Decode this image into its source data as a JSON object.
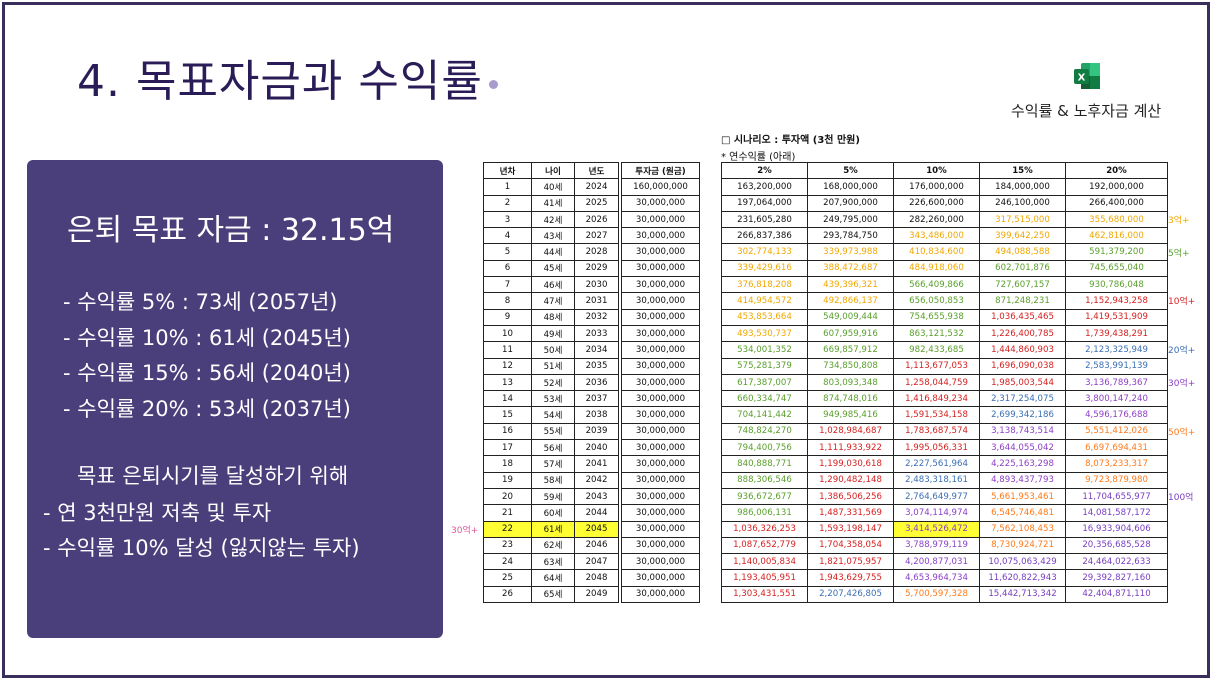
{
  "title": "4. 목표자금과 수익률",
  "excel_label": "수익률 & 노후자금 계산",
  "panel": {
    "goal": "은퇴 목표 자금 : 32.15억",
    "rates": [
      "- 수익률 5% : 73세 (2057년)",
      "- 수익률 10% : 61세 (2045년)",
      "- 수익률 15% : 56세 (2040년)",
      "- 수익률 20% : 53세 (2037년)"
    ],
    "aim_title": "목표 은퇴시기를 달성하기 위해",
    "aim_list": [
      "- 연 3천만원 저축 및 투자",
      "- 수익률 10% 달성 (잃지않는 투자)"
    ]
  },
  "scenario": {
    "title": "□ 시나리오 : 투자액 (3천 만원)",
    "subtitle": "* 연수익률 (아래)"
  },
  "table_headers": {
    "year_no": "년차",
    "age": "나이",
    "year": "년도",
    "invest": "투자금 (원금)",
    "rates": [
      "2%",
      "5%",
      "10%",
      "15%",
      "20%"
    ]
  },
  "rows": [
    {
      "n": "1",
      "age": "40세",
      "year": "2024",
      "invest": "160,000,000",
      "v": [
        "163,200,000",
        "168,000,000",
        "176,000,000",
        "184,000,000",
        "192,000,000"
      ]
    },
    {
      "n": "2",
      "age": "41세",
      "year": "2025",
      "invest": "30,000,000",
      "v": [
        "197,064,000",
        "207,900,000",
        "226,600,000",
        "246,100,000",
        "266,400,000"
      ]
    },
    {
      "n": "3",
      "age": "42세",
      "year": "2026",
      "invest": "30,000,000",
      "v": [
        "231,605,280",
        "249,795,000",
        "282,260,000",
        "317,515,000",
        "355,680,000"
      ]
    },
    {
      "n": "4",
      "age": "43세",
      "year": "2027",
      "invest": "30,000,000",
      "v": [
        "266,837,386",
        "293,784,750",
        "343,486,000",
        "399,642,250",
        "462,816,000"
      ]
    },
    {
      "n": "5",
      "age": "44세",
      "year": "2028",
      "invest": "30,000,000",
      "v": [
        "302,774,133",
        "339,973,988",
        "410,834,600",
        "494,088,588",
        "591,379,200"
      ]
    },
    {
      "n": "6",
      "age": "45세",
      "year": "2029",
      "invest": "30,000,000",
      "v": [
        "339,429,616",
        "388,472,687",
        "484,918,060",
        "602,701,876",
        "745,655,040"
      ]
    },
    {
      "n": "7",
      "age": "46세",
      "year": "2030",
      "invest": "30,000,000",
      "v": [
        "376,818,208",
        "439,396,321",
        "566,409,866",
        "727,607,157",
        "930,786,048"
      ]
    },
    {
      "n": "8",
      "age": "47세",
      "year": "2031",
      "invest": "30,000,000",
      "v": [
        "414,954,572",
        "492,866,137",
        "656,050,853",
        "871,248,231",
        "1,152,943,258"
      ]
    },
    {
      "n": "9",
      "age": "48세",
      "year": "2032",
      "invest": "30,000,000",
      "v": [
        "453,853,664",
        "549,009,444",
        "754,655,938",
        "1,036,435,465",
        "1,419,531,909"
      ]
    },
    {
      "n": "10",
      "age": "49세",
      "year": "2033",
      "invest": "30,000,000",
      "v": [
        "493,530,737",
        "607,959,916",
        "863,121,532",
        "1,226,400,785",
        "1,739,438,291"
      ]
    },
    {
      "n": "11",
      "age": "50세",
      "year": "2034",
      "invest": "30,000,000",
      "v": [
        "534,001,352",
        "669,857,912",
        "982,433,685",
        "1,444,860,903",
        "2,123,325,949"
      ]
    },
    {
      "n": "12",
      "age": "51세",
      "year": "2035",
      "invest": "30,000,000",
      "v": [
        "575,281,379",
        "734,850,808",
        "1,113,677,053",
        "1,696,090,038",
        "2,583,991,139"
      ]
    },
    {
      "n": "13",
      "age": "52세",
      "year": "2036",
      "invest": "30,000,000",
      "v": [
        "617,387,007",
        "803,093,348",
        "1,258,044,759",
        "1,985,003,544",
        "3,136,789,367"
      ]
    },
    {
      "n": "14",
      "age": "53세",
      "year": "2037",
      "invest": "30,000,000",
      "v": [
        "660,334,747",
        "874,748,016",
        "1,416,849,234",
        "2,317,254,075",
        "3,800,147,240"
      ]
    },
    {
      "n": "15",
      "age": "54세",
      "year": "2038",
      "invest": "30,000,000",
      "v": [
        "704,141,442",
        "949,985,416",
        "1,591,534,158",
        "2,699,342,186",
        "4,596,176,688"
      ]
    },
    {
      "n": "16",
      "age": "55세",
      "year": "2039",
      "invest": "30,000,000",
      "v": [
        "748,824,270",
        "1,028,984,687",
        "1,783,687,574",
        "3,138,743,514",
        "5,551,412,026"
      ]
    },
    {
      "n": "17",
      "age": "56세",
      "year": "2040",
      "invest": "30,000,000",
      "v": [
        "794,400,756",
        "1,111,933,922",
        "1,995,056,331",
        "3,644,055,042",
        "6,697,694,431"
      ]
    },
    {
      "n": "18",
      "age": "57세",
      "year": "2041",
      "invest": "30,000,000",
      "v": [
        "840,888,771",
        "1,199,030,618",
        "2,227,561,964",
        "4,225,163,298",
        "8,073,233,317"
      ]
    },
    {
      "n": "19",
      "age": "58세",
      "year": "2042",
      "invest": "30,000,000",
      "v": [
        "888,306,546",
        "1,290,482,148",
        "2,483,318,161",
        "4,893,437,793",
        "9,723,879,980"
      ]
    },
    {
      "n": "20",
      "age": "59세",
      "year": "2043",
      "invest": "30,000,000",
      "v": [
        "936,672,677",
        "1,386,506,256",
        "2,764,649,977",
        "5,661,953,461",
        "11,704,655,977"
      ]
    },
    {
      "n": "21",
      "age": "60세",
      "year": "2044",
      "invest": "30,000,000",
      "v": [
        "986,006,131",
        "1,487,331,569",
        "3,074,114,974",
        "6,545,746,481",
        "14,081,587,172"
      ]
    },
    {
      "n": "22",
      "age": "61세",
      "year": "2045",
      "invest": "30,000,000",
      "v": [
        "1,036,326,253",
        "1,593,198,147",
        "3,414,526,472",
        "7,562,108,453",
        "16,933,904,606"
      ]
    },
    {
      "n": "23",
      "age": "62세",
      "year": "2046",
      "invest": "30,000,000",
      "v": [
        "1,087,652,779",
        "1,704,358,054",
        "3,788,979,119",
        "8,730,924,721",
        "20,356,685,528"
      ]
    },
    {
      "n": "24",
      "age": "63세",
      "year": "2047",
      "invest": "30,000,000",
      "v": [
        "1,140,005,834",
        "1,821,075,957",
        "4,200,877,031",
        "10,075,063,429",
        "24,464,022,633"
      ]
    },
    {
      "n": "25",
      "age": "64세",
      "year": "2048",
      "invest": "30,000,000",
      "v": [
        "1,193,405,951",
        "1,943,629,755",
        "4,653,964,734",
        "11,620,822,943",
        "29,392,827,160"
      ]
    },
    {
      "n": "26",
      "age": "65세",
      "year": "2049",
      "invest": "30,000,000",
      "v": [
        "1,303,431,551",
        "2,207,426,805",
        "5,700,597,328",
        "15,442,713,342",
        "42,404,871,110"
      ]
    }
  ],
  "tier_colors": {
    "t0": "#111111",
    "t3": "#f0a800",
    "t5": "#5aa02c",
    "t10": "#d62020",
    "t20": "#3b6fb5",
    "t30": "#8d3fc7",
    "t50": "#ff7a1a",
    "t100": "#7a3fc0"
  },
  "side_marks": [
    {
      "label": "3억+",
      "row": 3,
      "tier": "t3"
    },
    {
      "label": "5억+",
      "row": 5,
      "tier": "t5"
    },
    {
      "label": "10억+",
      "row": 8,
      "tier": "t10"
    },
    {
      "label": "20억+",
      "row": 11,
      "tier": "t20"
    },
    {
      "label": "30억+",
      "row": 13,
      "tier": "t30"
    },
    {
      "label": "50억+",
      "row": 16,
      "tier": "t50"
    },
    {
      "label": "100억",
      "row": 20,
      "tier": "t100"
    }
  ],
  "left_mark": {
    "label": "30억+",
    "row": 22
  },
  "highlight_row": 22,
  "highlight_col": 2
}
